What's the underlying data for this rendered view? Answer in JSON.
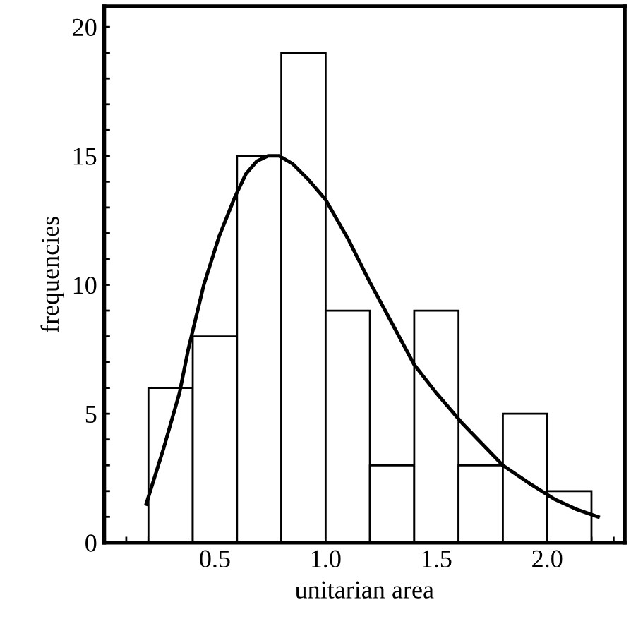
{
  "chart_data": {
    "type": "histogram",
    "xlabel": "unitarian area",
    "ylabel": "frequencies",
    "bins": [
      0.2,
      0.4,
      0.6,
      0.8,
      1.0,
      1.2,
      1.4,
      1.6,
      1.8,
      2.0,
      2.2
    ],
    "values": [
      6,
      8,
      15,
      19,
      9,
      3,
      9,
      3,
      5,
      2
    ],
    "color": "#ffffff",
    "series": [
      {
        "type": "line",
        "color": "#000000",
        "x": [
          0.19,
          0.27,
          0.34,
          0.38,
          0.45,
          0.52,
          0.59,
          0.64,
          0.69,
          0.74,
          0.79,
          0.85,
          0.92,
          1.0,
          1.1,
          1.2,
          1.3,
          1.4,
          1.5,
          1.62,
          1.71,
          1.8,
          1.92,
          2.03,
          2.13,
          2.23
        ],
        "values": [
          1.5,
          3.7,
          5.8,
          7.5,
          10.0,
          11.9,
          13.4,
          14.3,
          14.8,
          15.0,
          15.0,
          14.7,
          14.1,
          13.3,
          11.8,
          10.1,
          8.5,
          6.9,
          5.8,
          4.6,
          3.8,
          3.0,
          2.3,
          1.7,
          1.3,
          1.0
        ]
      }
    ],
    "xlim": [
      0,
      2.35
    ],
    "ylim": [
      0,
      20.8
    ],
    "xticks": [
      {
        "value": 0.1,
        "label": null
      },
      {
        "value": 0.2,
        "label": null
      },
      {
        "value": 0.3,
        "label": null
      },
      {
        "value": 0.4,
        "label": null
      },
      0.5,
      {
        "value": 0.6,
        "label": null
      },
      {
        "value": 0.7,
        "label": null
      },
      {
        "value": 0.8,
        "label": null
      },
      {
        "value": 0.9,
        "label": null
      },
      {
        "value": 1.0,
        "label": "1.0"
      },
      {
        "value": 1.1,
        "label": null
      },
      {
        "value": 1.2,
        "label": null
      },
      {
        "value": 1.3,
        "label": null
      },
      {
        "value": 1.4,
        "label": null
      },
      1.5,
      {
        "value": 1.6,
        "label": null
      },
      {
        "value": 1.7,
        "label": null
      },
      {
        "value": 1.8,
        "label": null
      },
      {
        "value": 1.9,
        "label": null
      },
      {
        "value": 2.0,
        "label": "2.0"
      },
      {
        "value": 2.1,
        "label": null
      },
      {
        "value": 2.2,
        "label": null
      },
      {
        "value": 2.3,
        "label": null
      }
    ],
    "yticks": [
      0,
      {
        "value": 1,
        "label": null
      },
      {
        "value": 2,
        "label": null
      },
      {
        "value": 3,
        "label": null
      },
      {
        "value": 4,
        "label": null
      },
      5,
      {
        "value": 6,
        "label": null
      },
      {
        "value": 7,
        "label": null
      },
      {
        "value": 8,
        "label": null
      },
      {
        "value": 9,
        "label": null
      },
      10,
      {
        "value": 11,
        "label": null
      },
      {
        "value": 12,
        "label": null
      },
      {
        "value": 13,
        "label": null
      },
      {
        "value": 14,
        "label": null
      },
      15,
      {
        "value": 16,
        "label": null
      },
      {
        "value": 17,
        "label": null
      },
      {
        "value": 18,
        "label": null
      },
      {
        "value": 19,
        "label": null
      },
      20
    ],
    "grid": false,
    "legend": false
  }
}
